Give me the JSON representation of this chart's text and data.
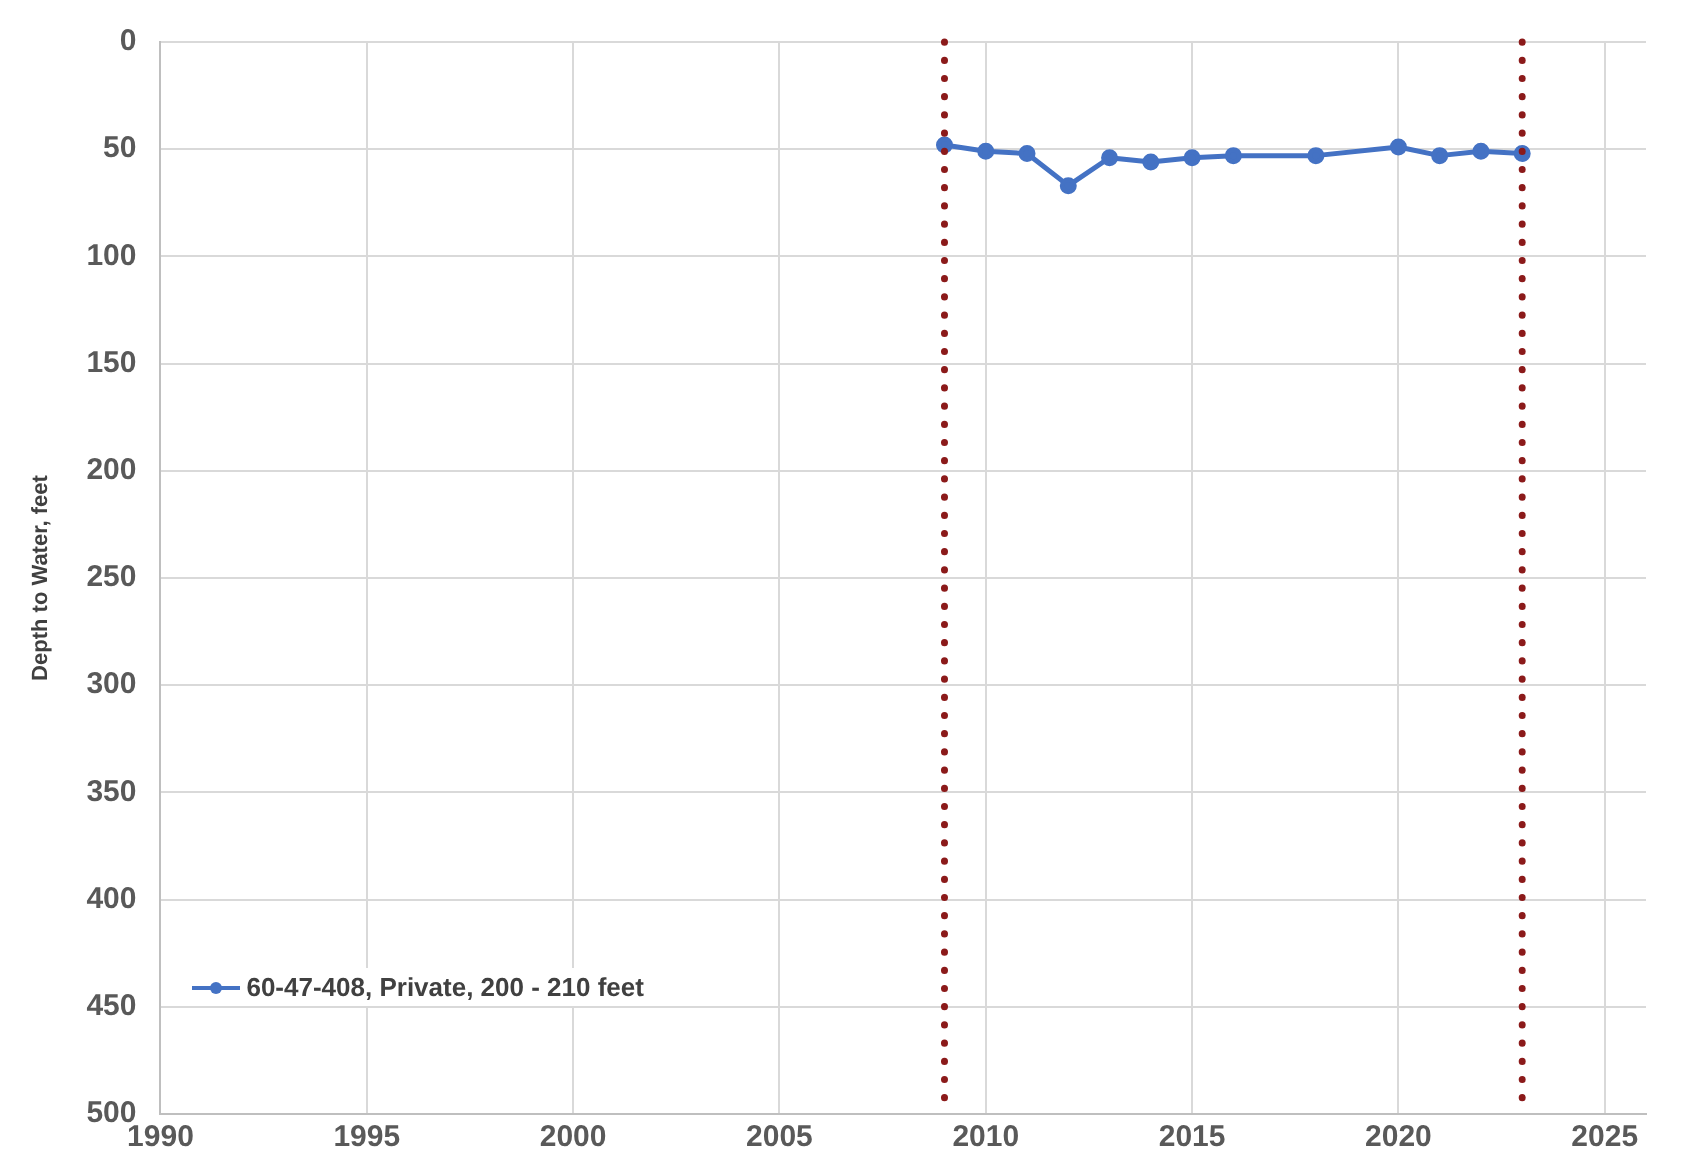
{
  "chart_data": {
    "type": "line",
    "ylabel": "Depth to Water, feet",
    "x": [
      2009,
      2010,
      2011,
      2012,
      2013,
      2014,
      2015,
      2016,
      2018,
      2020,
      2021,
      2022,
      2023
    ],
    "series": [
      {
        "name": "60-47-408, Private, 200 - 210 feet",
        "color": "#4472c4",
        "values": [
          48,
          51,
          52,
          67,
          54,
          56,
          54,
          53,
          53,
          49,
          53,
          51,
          52
        ]
      }
    ],
    "xlim": [
      1990,
      2026
    ],
    "xticks": [
      1990,
      1995,
      2000,
      2005,
      2010,
      2015,
      2020,
      2025
    ],
    "ylim": [
      500,
      0
    ],
    "yticks": [
      0,
      50,
      100,
      150,
      200,
      250,
      300,
      350,
      400,
      450,
      500
    ],
    "ref_lines": [
      {
        "axis": "x",
        "value": 2009,
        "color": "#8b1a1a",
        "line_style": "dotted"
      },
      {
        "axis": "x",
        "value": 2023,
        "color": "#8b1a1a",
        "line_style": "dotted"
      }
    ],
    "grid": true,
    "legend": "bottom left",
    "marker": "circle",
    "line_style": "solid"
  }
}
